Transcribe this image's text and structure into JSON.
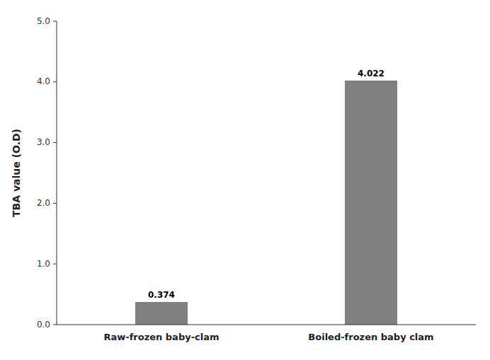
{
  "chart_data": {
    "type": "bar",
    "categories": [
      "Raw-frozen baby-clam",
      "Boiled-frozen baby clam"
    ],
    "values": [
      0.374,
      4.022
    ],
    "color": "#808080",
    "y_label": "TBA value (O.D)",
    "ylim": [
      0,
      5.0
    ],
    "yticks": [
      {
        "value": 0.0,
        "label": "0.0"
      },
      {
        "value": 1.0,
        "label": "1.0"
      },
      {
        "value": 2.0,
        "label": "2.0"
      },
      {
        "value": 3.0,
        "label": "3.0"
      },
      {
        "value": 4.0,
        "label": "4.0"
      },
      {
        "value": 5.0,
        "label": "5.0"
      }
    ],
    "data_labels": true,
    "grid": false
  }
}
